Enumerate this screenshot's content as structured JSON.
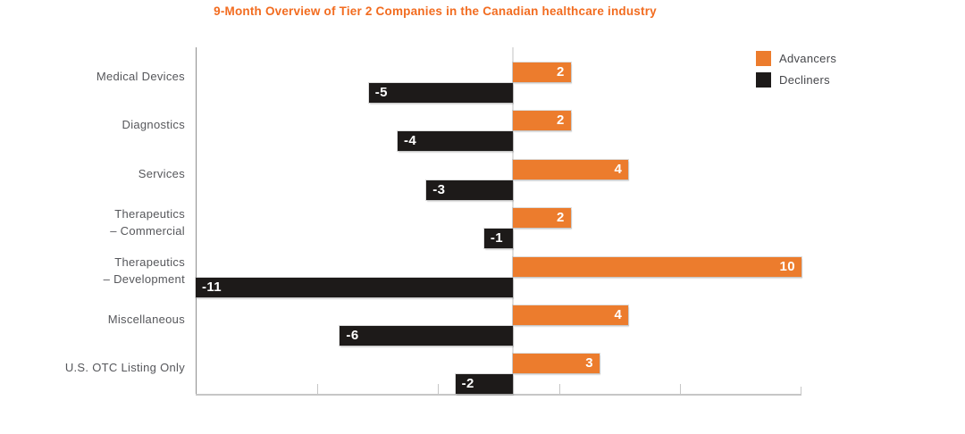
{
  "chart_data": {
    "type": "bar",
    "orientation": "horizontal",
    "title": "9-Month Overview of Tier 2 Companies in the Canadian healthcare industry",
    "title_color": "#f26c20",
    "categories": [
      "Medical Devices",
      "Diagnostics",
      "Services",
      "Therapeutics\n– Commercial",
      "Therapeutics\n– Development",
      "Miscellaneous",
      "U.S. OTC Listing Only"
    ],
    "series": [
      {
        "name": "Advancers",
        "color": "#ec7c2d",
        "values": [
          2,
          2,
          4,
          2,
          10,
          4,
          3
        ]
      },
      {
        "name": "Decliners",
        "color": "#1d1a19",
        "values": [
          -5,
          -4,
          -3,
          -1,
          -11,
          -6,
          -2
        ]
      }
    ],
    "xlim": [
      -11,
      10
    ],
    "x_tick_divisions": 5,
    "tick_labels_visible": false,
    "grid": false,
    "legend_position": "top-right",
    "value_labels_inside_bars": true,
    "category_label_color": "#56575b",
    "axis_color": "#c6c6c6"
  }
}
